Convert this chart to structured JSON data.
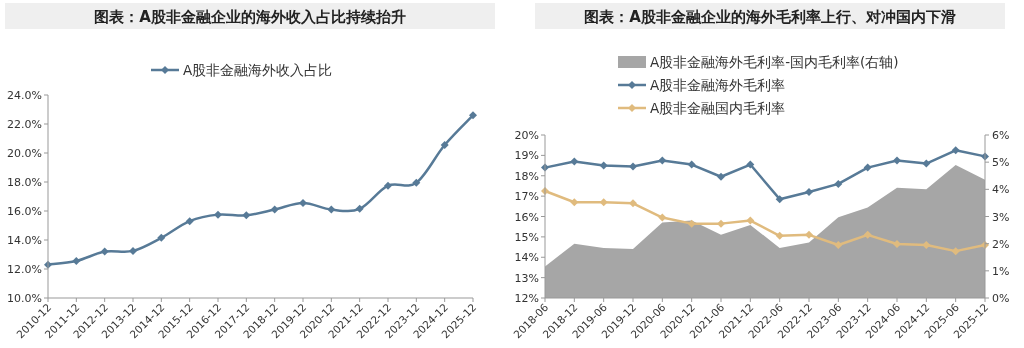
{
  "chart_data": [
    {
      "type": "line",
      "title": "图表：A股非金融企业的海外收入占比持续抬升",
      "categories": [
        "2010-12",
        "2011-12",
        "2012-12",
        "2013-12",
        "2014-12",
        "2015-12",
        "2016-12",
        "2017-12",
        "2018-12",
        "2019-12",
        "2020-12",
        "2021-12",
        "2022-12",
        "2023-12",
        "2024-12",
        "2025-12"
      ],
      "series": [
        {
          "name": "A股非金融海外收入占比",
          "color": "#577a97",
          "values": [
            12.3,
            12.55,
            13.2,
            13.25,
            14.15,
            15.3,
            15.75,
            15.7,
            16.1,
            16.55,
            16.1,
            16.15,
            17.75,
            17.95,
            20.55,
            22.6
          ]
        }
      ],
      "ylim": [
        10,
        24
      ],
      "yticks": [
        {
          "value": 10,
          "label": "10.0%"
        },
        {
          "value": 12,
          "label": "12.0%"
        },
        {
          "value": 14,
          "label": "14.0%"
        },
        {
          "value": 16,
          "label": "16.0%"
        },
        {
          "value": 18,
          "label": "18.0%"
        },
        {
          "value": 20,
          "label": "20.0%"
        },
        {
          "value": 22,
          "label": "22.0%"
        },
        {
          "value": 24,
          "label": "24.0%"
        }
      ],
      "marker": "diamond",
      "legend": "top",
      "grid": false
    },
    {
      "type": "line",
      "title": "图表：A股非金融企业的海外毛利率上行、对冲国内下滑",
      "categories": [
        "2018-06",
        "2018-12",
        "2019-06",
        "2019-12",
        "2020-06",
        "2020-12",
        "2021-06",
        "2021-12",
        "2022-06",
        "2022-12",
        "2023-06",
        "2023-12",
        "2024-06",
        "2024-12",
        "2025-06",
        "2025-12"
      ],
      "series": [
        {
          "name": "A股非金融海外毛利率-国内毛利率(右轴)",
          "type": "area",
          "axis": "y2",
          "color": "#a6a6a6",
          "values": [
            1.16,
            2.0,
            1.84,
            1.8,
            2.78,
            2.85,
            2.33,
            2.69,
            1.84,
            2.04,
            2.97,
            3.33,
            4.06,
            4.0,
            4.9,
            4.35
          ]
        },
        {
          "name": "A股非金融海外毛利率",
          "color": "#577a97",
          "marker": "diamond",
          "values": [
            18.4,
            18.7,
            18.5,
            18.45,
            18.75,
            18.55,
            17.95,
            18.55,
            16.85,
            17.2,
            17.6,
            18.4,
            18.75,
            18.6,
            19.25,
            18.95
          ]
        },
        {
          "name": "A股非金融国内毛利率",
          "color": "#e0bb7e",
          "marker": "diamond",
          "values": [
            17.25,
            16.7,
            16.7,
            16.65,
            15.95,
            15.65,
            15.65,
            15.8,
            15.05,
            15.1,
            14.6,
            15.1,
            14.65,
            14.6,
            14.3,
            14.6
          ]
        }
      ],
      "ylim": [
        12,
        20
      ],
      "yticks": [
        {
          "value": 12,
          "label": "12%"
        },
        {
          "value": 13,
          "label": "13%"
        },
        {
          "value": 14,
          "label": "14%"
        },
        {
          "value": 15,
          "label": "15%"
        },
        {
          "value": 16,
          "label": "16%"
        },
        {
          "value": 17,
          "label": "17%"
        },
        {
          "value": 18,
          "label": "18%"
        },
        {
          "value": 19,
          "label": "19%"
        },
        {
          "value": 20,
          "label": "20%"
        }
      ],
      "y2lim": [
        0,
        6
      ],
      "y2ticks": [
        {
          "value": 0,
          "label": "0%"
        },
        {
          "value": 1,
          "label": "1%"
        },
        {
          "value": 2,
          "label": "2%"
        },
        {
          "value": 3,
          "label": "3%"
        },
        {
          "value": 4,
          "label": "4%"
        },
        {
          "value": 5,
          "label": "5%"
        },
        {
          "value": 6,
          "label": "6%"
        }
      ],
      "legend": "top",
      "grid": false
    }
  ]
}
